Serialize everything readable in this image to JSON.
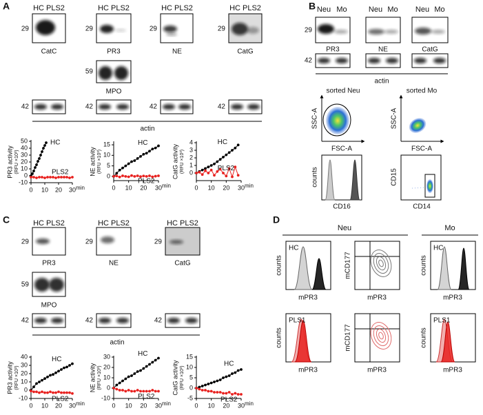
{
  "panels": {
    "A": {
      "letter": "A",
      "lanes": "HC PLS2",
      "mw": [
        "29",
        "59",
        "42"
      ],
      "proteins": [
        "CatC",
        "PR3",
        "NE",
        "CatG"
      ],
      "mpo": "MPO",
      "loading": "actin"
    },
    "B": {
      "letter": "B",
      "lanes": [
        "Neu",
        "Mo"
      ],
      "mw": [
        "29",
        "42"
      ],
      "proteins": [
        "PR3",
        "NE",
        "CatG"
      ],
      "loading": "actin",
      "flow_titles": [
        "sorted Neu",
        "sorted Mo"
      ],
      "axis_labels": [
        "SSC-A",
        "FSC-A",
        "counts",
        "CD16",
        "CD15",
        "CD14"
      ]
    },
    "C": {
      "letter": "C",
      "lanes": "HC PLS2",
      "mw": [
        "29",
        "59",
        "42"
      ],
      "proteins": [
        "PR3",
        "NE",
        "CatG"
      ],
      "mpo": "MPO",
      "loading": "actin"
    },
    "D": {
      "letter": "D",
      "groups": [
        "Neu",
        "Mo"
      ],
      "samples": [
        "HC",
        "PLS1"
      ],
      "axis_labels": [
        "counts",
        "mPR3",
        "mCD177"
      ]
    }
  },
  "chart_data": [
    {
      "type": "line",
      "y_label": [
        "PR3 activity",
        "(RFU ×10³)"
      ],
      "x_label": "min",
      "xlim": [
        0,
        30
      ],
      "xticks": [
        0,
        10,
        20,
        30
      ],
      "ylim": [
        -10,
        50
      ],
      "yticks": [
        -10,
        0,
        10,
        20,
        30,
        40,
        50
      ],
      "series": [
        {
          "name": "HC",
          "color": "#000000",
          "x": [
            0,
            1,
            2,
            3,
            4,
            5,
            6,
            7,
            8,
            9,
            10,
            11
          ],
          "values": [
            0,
            3,
            7,
            12,
            16,
            21,
            25,
            30,
            35,
            40,
            44,
            48
          ]
        },
        {
          "name": "PLS2",
          "color": "#e8211f",
          "x": [
            0,
            2,
            4,
            6,
            8,
            10,
            12,
            14,
            16,
            18,
            20,
            22,
            24,
            26,
            28,
            30
          ],
          "values": [
            -2,
            -2,
            -3,
            -2,
            -2,
            -3,
            -2,
            -2,
            -2,
            -3,
            -2,
            -2,
            -2,
            -2,
            -3,
            -2
          ]
        }
      ]
    },
    {
      "type": "line",
      "y_label": [
        "NE activity",
        "(RFU ×10³)"
      ],
      "x_label": "min",
      "xlim": [
        0,
        30
      ],
      "xticks": [
        0,
        10,
        20,
        30
      ],
      "ylim": [
        -2,
        16
      ],
      "yticks": [
        0,
        5,
        10,
        15
      ],
      "series": [
        {
          "name": "HC",
          "color": "#000000",
          "x": [
            0,
            2,
            4,
            6,
            8,
            10,
            12,
            14,
            16,
            18,
            20,
            22,
            24,
            26,
            28,
            30
          ],
          "values": [
            0,
            1.5,
            3,
            4,
            5,
            6,
            7,
            7.5,
            8.5,
            9.5,
            10.5,
            11,
            12,
            13,
            13.5,
            14.5
          ]
        },
        {
          "name": "PLS2",
          "color": "#e8211f",
          "x": [
            0,
            2,
            4,
            6,
            8,
            10,
            12,
            14,
            16,
            18,
            20,
            22,
            24,
            26,
            28,
            30
          ],
          "values": [
            0,
            0.2,
            -0.3,
            0.3,
            0,
            -0.2,
            0.4,
            0,
            0.3,
            -0.1,
            0.2,
            0,
            0.3,
            -0.2,
            0.1,
            0.3
          ]
        }
      ]
    },
    {
      "type": "line",
      "y_label": [
        "CatG activity",
        "(RFU ×10³)"
      ],
      "x_label": "min",
      "xlim": [
        0,
        30
      ],
      "xticks": [
        0,
        10,
        20,
        30
      ],
      "ylim": [
        -1,
        4
      ],
      "yticks": [
        0,
        1,
        2,
        3,
        4
      ],
      "series": [
        {
          "name": "HC",
          "color": "#000000",
          "x": [
            0,
            2,
            4,
            6,
            8,
            10,
            12,
            14,
            16,
            18,
            20,
            22,
            24,
            26,
            28
          ],
          "values": [
            0,
            0.2,
            0.4,
            0.6,
            0.8,
            1,
            1.2,
            1.5,
            1.8,
            2.1,
            2.4,
            2.7,
            3,
            3.3,
            3.7
          ]
        },
        {
          "name": "PLS2",
          "color": "#e8211f",
          "x": [
            0,
            2,
            4,
            6,
            8,
            10,
            12,
            14,
            16,
            18,
            20,
            22,
            24,
            26,
            28
          ],
          "values": [
            0,
            0.1,
            -0.2,
            0.3,
            0,
            0.4,
            -0.3,
            0.2,
            0.5,
            0,
            -0.4,
            0.6,
            -0.5,
            0.8,
            -0.3
          ]
        }
      ]
    },
    {
      "type": "line",
      "y_label": [
        "PR3 activity",
        "(RFU ×10³)"
      ],
      "x_label": "min",
      "xlim": [
        0,
        30
      ],
      "xticks": [
        0,
        10,
        20,
        30
      ],
      "ylim": [
        -10,
        40
      ],
      "yticks": [
        -10,
        0,
        10,
        20,
        30,
        40
      ],
      "series": [
        {
          "name": "HC",
          "color": "#000000",
          "x": [
            0,
            2,
            4,
            6,
            8,
            10,
            12,
            14,
            16,
            18,
            20,
            22,
            24,
            26,
            28,
            30
          ],
          "values": [
            0,
            4,
            8,
            10,
            12,
            14,
            16,
            18,
            19,
            21,
            23,
            25,
            27,
            28,
            30,
            32
          ]
        },
        {
          "name": "PLS2",
          "color": "#e8211f",
          "x": [
            0,
            2,
            4,
            6,
            8,
            10,
            12,
            14,
            16,
            18,
            20,
            22,
            24,
            26,
            28,
            30
          ],
          "values": [
            -1,
            -2,
            -2,
            -3,
            -2,
            -3,
            -3,
            -2,
            -3,
            -3,
            -2,
            -3,
            -3,
            -3,
            -3,
            -4
          ]
        }
      ]
    },
    {
      "type": "line",
      "y_label": [
        "NE activity",
        "(RFU ×10³)"
      ],
      "x_label": "min",
      "xlim": [
        0,
        30
      ],
      "xticks": [
        0,
        10,
        20,
        30
      ],
      "ylim": [
        -10,
        30
      ],
      "yticks": [
        -10,
        0,
        10,
        20,
        30
      ],
      "series": [
        {
          "name": "HC",
          "color": "#000000",
          "x": [
            0,
            2,
            4,
            6,
            8,
            10,
            12,
            14,
            16,
            18,
            20,
            22,
            24,
            26,
            28,
            30
          ],
          "values": [
            0,
            3,
            5,
            7,
            9,
            11,
            12,
            14,
            16,
            17,
            19,
            21,
            23,
            25,
            27,
            29
          ]
        },
        {
          "name": "PLS2",
          "color": "#e8211f",
          "x": [
            0,
            2,
            4,
            6,
            8,
            10,
            12,
            14,
            16,
            18,
            20,
            22,
            24,
            26,
            28,
            30
          ],
          "values": [
            0,
            -1,
            -2,
            -2,
            -3,
            -2,
            -3,
            -3,
            -2,
            -3,
            -3,
            -3,
            -3,
            -2,
            -3,
            -3
          ]
        }
      ]
    },
    {
      "type": "line",
      "y_label": [
        "CatG activity",
        "(RFU ×10³)"
      ],
      "x_label": "min",
      "xlim": [
        0,
        30
      ],
      "xticks": [
        0,
        10,
        20,
        30
      ],
      "ylim": [
        -5,
        15
      ],
      "yticks": [
        -5,
        0,
        5,
        10,
        15
      ],
      "series": [
        {
          "name": "HC",
          "color": "#000000",
          "x": [
            0,
            2,
            4,
            6,
            8,
            10,
            12,
            14,
            16,
            18,
            20,
            22,
            24,
            26,
            28,
            30
          ],
          "values": [
            0,
            0.5,
            1,
            1.5,
            2,
            2.5,
            3,
            3.5,
            4,
            5,
            5.5,
            6,
            7,
            7.5,
            8.5,
            9
          ]
        },
        {
          "name": "PLS2",
          "color": "#e8211f",
          "x": [
            0,
            2,
            4,
            6,
            8,
            10,
            12,
            14,
            16,
            18,
            20,
            22,
            24,
            26,
            28,
            30
          ],
          "values": [
            0,
            -0.5,
            -1,
            -1,
            -1.5,
            -1.5,
            -2,
            -2,
            -2,
            -2.5,
            -2.5,
            -2,
            -3,
            -2.5,
            -3,
            -3
          ]
        }
      ]
    }
  ]
}
